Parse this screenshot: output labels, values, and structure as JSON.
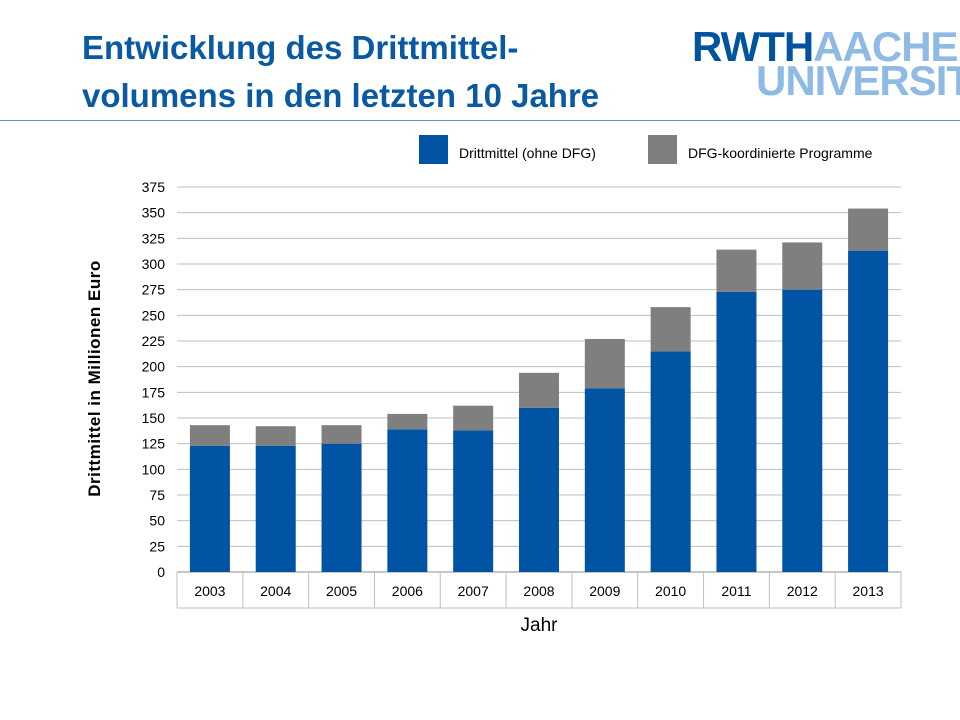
{
  "slide": {
    "title_line1": "Entwicklung des Drittmittel-",
    "title_line2": "volumens in den letzten 10 Jahre",
    "logo_part1": "RWTH",
    "logo_part2": "AACHEN",
    "logo_part3": "UNIVERSITY"
  },
  "colors": {
    "series1": "#0153a3",
    "series2": "#7f7f7f",
    "title": "#0a5aa3"
  },
  "chart_data": {
    "type": "bar",
    "stacked": true,
    "title": "",
    "xlabel": "Jahr",
    "ylabel": "Drittmittel in Millionen Euro",
    "ylim": [
      0,
      375
    ],
    "ytick_step": 25,
    "grid": true,
    "legend": "top",
    "categories": [
      "2003",
      "2004",
      "2005",
      "2006",
      "2007",
      "2008",
      "2009",
      "2010",
      "2011",
      "2012",
      "2013"
    ],
    "series": [
      {
        "name": "Drittmittel (ohne DFG)",
        "values": [
          123,
          123,
          125,
          139,
          138,
          160,
          179,
          215,
          273,
          275,
          313
        ]
      },
      {
        "name": "DFG-koordinierte Programme",
        "values": [
          20,
          19,
          18,
          15,
          24,
          34,
          48,
          43,
          41,
          46,
          41
        ]
      }
    ]
  }
}
